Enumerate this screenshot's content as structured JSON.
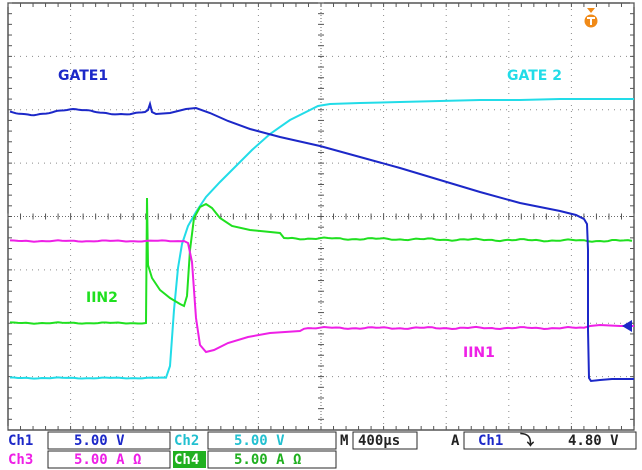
{
  "waveform_labels": {
    "gate1": "GATE1",
    "gate2": "GATE 2",
    "iin1": "IIN1",
    "iin2": "IIN2"
  },
  "channel_colors": {
    "ch1": "#1c28c8",
    "ch2": "#22dce8",
    "ch3": "#ee20e6",
    "ch4": "#20e020"
  },
  "trigger_marker_icon": "trigger-position-icon",
  "status_bar": {
    "ch1_name": "Ch1",
    "ch1_scale": "5.00 V",
    "ch2_name": "Ch2",
    "ch2_scale": "5.00 V",
    "timebase_prefix": "M",
    "timebase_value": "400µs",
    "trigger_prefix": "A",
    "trigger_source": "Ch1",
    "trigger_slope_symbol": "⤵",
    "trigger_level": "4.80 V",
    "ch3_name": "Ch3",
    "ch3_scale": "5.00 A Ω",
    "ch4_name": "Ch4",
    "ch4_scale": "5.00 A Ω"
  }
}
